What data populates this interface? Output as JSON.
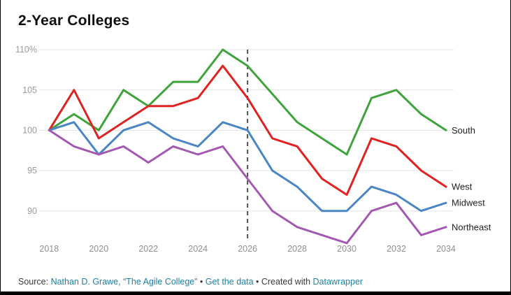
{
  "title": "2-Year Colleges",
  "chart_data": {
    "type": "line",
    "title": "2-Year Colleges",
    "xlabel": "",
    "ylabel": "",
    "x": [
      2018,
      2019,
      2020,
      2021,
      2022,
      2023,
      2024,
      2025,
      2026,
      2027,
      2028,
      2029,
      2030,
      2031,
      2032,
      2033,
      2034
    ],
    "series": [
      {
        "name": "South",
        "color": "#3ea43b",
        "values": [
          100,
          102,
          100,
          105,
          103,
          106,
          106,
          110,
          108,
          104.5,
          101,
          99,
          97,
          104,
          105,
          102,
          100
        ]
      },
      {
        "name": "West",
        "color": "#e02320",
        "values": [
          100,
          105,
          99,
          101,
          103,
          103,
          104,
          108,
          104,
          99,
          98,
          94,
          92,
          99,
          98,
          95,
          93
        ]
      },
      {
        "name": "Midwest",
        "color": "#4a86c4",
        "values": [
          100,
          101,
          97,
          100,
          101,
          99,
          98,
          101,
          100,
          95,
          93,
          90,
          90,
          93,
          92,
          90,
          91
        ]
      },
      {
        "name": "Northeast",
        "color": "#a459b1",
        "values": [
          100,
          98,
          97,
          98,
          96,
          98,
          97,
          98,
          94,
          90,
          88,
          87,
          86,
          90,
          91,
          87,
          88
        ]
      }
    ],
    "y_ticks": [
      90,
      95,
      100,
      105,
      110
    ],
    "y_tick_labels": [
      "90",
      "95",
      "100",
      "105",
      "110%"
    ],
    "x_ticks": [
      2018,
      2020,
      2022,
      2024,
      2026,
      2028,
      2030,
      2032,
      2034
    ],
    "ylim": [
      85,
      111
    ],
    "xlim": [
      2018,
      2034
    ],
    "grid": "horizontal",
    "legend_position": "line-end-labels",
    "vline_x": 2026,
    "vline_style": "dashed"
  },
  "colors": {
    "grid": "#e3e3e3",
    "vline": "#4f4f4f",
    "axis_text": "#9b9b9b",
    "link": "#1d81a2"
  },
  "footer": {
    "segments": [
      {
        "text": "Source: "
      },
      {
        "text": "Nathan D. Grawe, “The Agile College”"
      },
      {
        "text": " • "
      },
      {
        "text": "Get the data"
      },
      {
        "text": " • Created with "
      },
      {
        "text": "Datawrapper"
      }
    ]
  }
}
